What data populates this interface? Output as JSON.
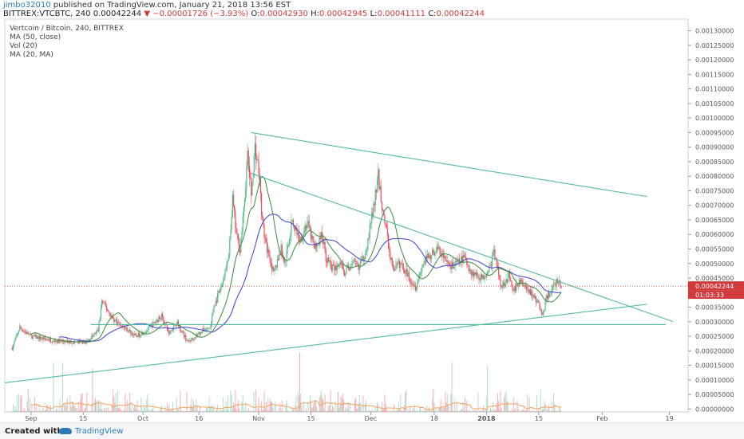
{
  "header": {
    "user": "jimbo32010",
    "published": "published on TradingView.com, January 21, 2018 13:56 EST",
    "symbol": "BITTREX:VTCBTC, 240",
    "last": "0.00042244",
    "change_arrow": "▼",
    "change": "−0.00001726 (−3.93%)",
    "o_label": "O:",
    "o_value": "0.00042930",
    "h_label": "H:",
    "h_value": "0.00042945",
    "l_label": "L:",
    "l_value": "0.00041111",
    "c_label": "C:",
    "c_value": "0.00042244"
  },
  "legend": [
    "Vertcoin / Bitcoin, 240, BITTREX",
    "MA (50, close)",
    "Vol (20)",
    "MA (20, MA)"
  ],
  "footer": {
    "created": "Created with",
    "brand": "TradingView"
  },
  "colors": {
    "bull": "#53b987",
    "bear": "#eb4d5c",
    "ma50": "#3b3fd3",
    "ma_fast": "#3a8a3a",
    "ma_vol": "#f4a460",
    "trend": "#53b9a1",
    "price_line": "#d23b3b",
    "axis_text": "#555555"
  },
  "chart_data": {
    "type": "candlestick",
    "title": "Vertcoin / Bitcoin, 240, BITTREX",
    "price_axis": {
      "ylim": [
        -1e-05,
        0.00134
      ],
      "ticks": [
        "0.00000000",
        "0.00005000",
        "0.00010000",
        "0.00015000",
        "0.00020000",
        "0.00025000",
        "0.00030000",
        "0.00035000",
        "0.00040000",
        "0.00045000",
        "0.00050000",
        "0.00055000",
        "0.00060000",
        "0.00065000",
        "0.00070000",
        "0.00075000",
        "0.00080000",
        "0.00085000",
        "0.00090000",
        "0.00095000",
        "0.00100000",
        "0.00105000",
        "0.00110000",
        "0.00115000",
        "0.00120000",
        "0.00125000",
        "0.00130000"
      ]
    },
    "time_axis": {
      "ticks": [
        {
          "label": "Sep",
          "day": 5
        },
        {
          "label": "15",
          "day": 19
        },
        {
          "label": "Oct",
          "day": 35
        },
        {
          "label": "16",
          "day": 50
        },
        {
          "label": "Nov",
          "day": 66
        },
        {
          "label": "15",
          "day": 80
        },
        {
          "label": "Dec",
          "day": 96
        },
        {
          "label": "18",
          "day": 113
        },
        {
          "label": "2018",
          "day": 127
        },
        {
          "label": "15",
          "day": 141
        },
        {
          "label": "Feb",
          "day": 158
        },
        {
          "label": "19",
          "day": 176
        }
      ]
    },
    "price_path": [
      [
        0,
        0.00021
      ],
      [
        2,
        0.00028
      ],
      [
        5,
        0.00025
      ],
      [
        9,
        0.00024
      ],
      [
        14,
        0.00023
      ],
      [
        20,
        0.00023
      ],
      [
        23,
        0.00027
      ],
      [
        24,
        0.00037
      ],
      [
        27,
        0.00031
      ],
      [
        30,
        0.00028
      ],
      [
        33,
        0.00025
      ],
      [
        36,
        0.00027
      ],
      [
        40,
        0.00032
      ],
      [
        42,
        0.00026
      ],
      [
        44,
        0.0003
      ],
      [
        47,
        0.00023
      ],
      [
        51,
        0.00027
      ],
      [
        53,
        0.00028
      ],
      [
        54,
        0.00035
      ],
      [
        56,
        0.00042
      ],
      [
        58,
        0.00052
      ],
      [
        59,
        0.00072
      ],
      [
        60,
        0.0006
      ],
      [
        61,
        0.00055
      ],
      [
        62,
        0.00068
      ],
      [
        63,
        0.00087
      ],
      [
        64,
        0.00074
      ],
      [
        65,
        0.0009
      ],
      [
        66,
        0.00082
      ],
      [
        67,
        0.00064
      ],
      [
        68,
        0.00056
      ],
      [
        69,
        0.00052
      ],
      [
        70,
        0.00046
      ],
      [
        71,
        0.00051
      ],
      [
        72,
        0.00055
      ],
      [
        73,
        0.0005
      ],
      [
        75,
        0.00065
      ],
      [
        77,
        0.00058
      ],
      [
        79,
        0.00064
      ],
      [
        81,
        0.00055
      ],
      [
        83,
        0.0006
      ],
      [
        84,
        0.00052
      ],
      [
        86,
        0.00048
      ],
      [
        88,
        0.0005
      ],
      [
        89,
        0.00047
      ],
      [
        91,
        0.0005
      ],
      [
        93,
        0.00049
      ],
      [
        94,
        0.00052
      ],
      [
        95,
        0.00056
      ],
      [
        96,
        0.00064
      ],
      [
        97,
        0.00071
      ],
      [
        98,
        0.0008
      ],
      [
        99,
        0.0007
      ],
      [
        100,
        0.00063
      ],
      [
        101,
        0.00054
      ],
      [
        102,
        0.00048
      ],
      [
        104,
        0.0005
      ],
      [
        106,
        0.00046
      ],
      [
        108,
        0.00042
      ],
      [
        110,
        0.0005
      ],
      [
        112,
        0.00053
      ],
      [
        114,
        0.00055
      ],
      [
        116,
        0.00051
      ],
      [
        118,
        0.00049
      ],
      [
        121,
        0.00052
      ],
      [
        123,
        0.00047
      ],
      [
        126,
        0.00045
      ],
      [
        128,
        0.00049
      ],
      [
        129,
        0.00054
      ],
      [
        130,
        0.00048
      ],
      [
        131,
        0.00042
      ],
      [
        133,
        0.00046
      ],
      [
        134,
        0.0004
      ],
      [
        136,
        0.00044
      ],
      [
        138,
        0.00041
      ],
      [
        139,
        0.0004
      ],
      [
        141,
        0.00036
      ],
      [
        142,
        0.00032
      ],
      [
        143,
        0.00038
      ],
      [
        145,
        0.00042
      ],
      [
        146,
        0.00044
      ],
      [
        147,
        0.000422
      ]
    ],
    "volume_max": 0.0001,
    "trend_lines": [
      {
        "name": "upper-resistance",
        "from": [
          64,
          0.00095
        ],
        "to": [
          170,
          0.00073
        ]
      },
      {
        "name": "middle-resistance",
        "from": [
          64,
          0.00081
        ],
        "to": [
          177,
          0.0003
        ]
      },
      {
        "name": "rising-support",
        "from": [
          -2,
          9e-05
        ],
        "to": [
          170,
          0.00036
        ]
      },
      {
        "name": "horizontal-support",
        "from": [
          21,
          0.00029
        ],
        "to": [
          175,
          0.00029
        ]
      }
    ],
    "last_price": "0.00042244",
    "countdown": "01:03:33",
    "x_range": [
      -2,
      181
    ]
  }
}
